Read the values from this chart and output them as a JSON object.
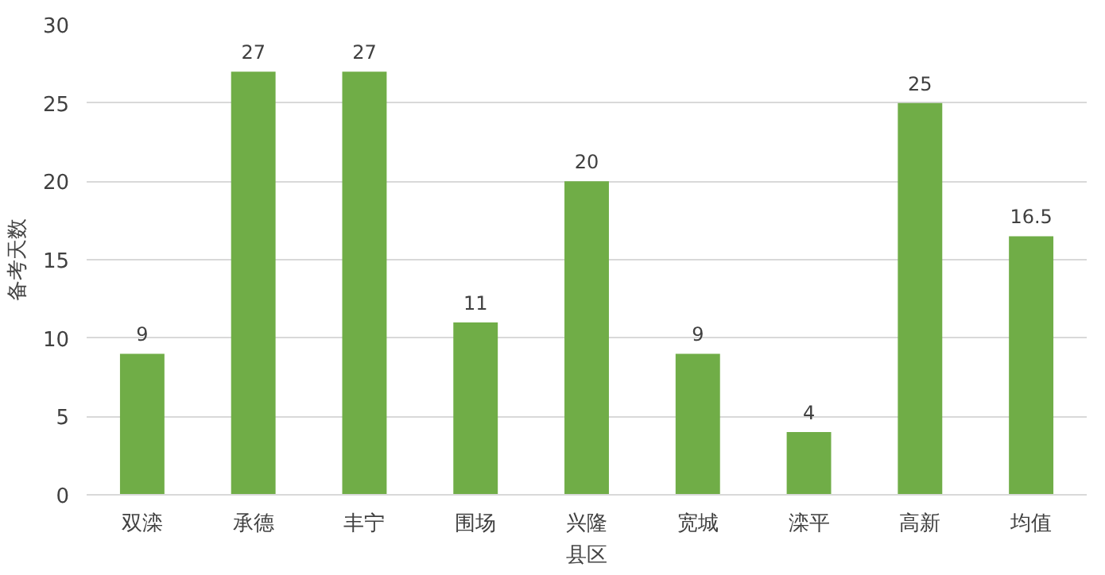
{
  "chart_data": {
    "type": "bar",
    "categories": [
      "双滦",
      "承德",
      "丰宁",
      "围场",
      "兴隆",
      "宽城",
      "滦平",
      "高新",
      "均值"
    ],
    "values": [
      9,
      27,
      27,
      11,
      20,
      9,
      4,
      25,
      16.5
    ],
    "color": "#70ad47",
    "xlabel": "县区",
    "ylabel": "备考天数",
    "ylim": [
      0,
      30
    ],
    "yticks": [
      0,
      5,
      10,
      15,
      20,
      25,
      30
    ],
    "grid": "y",
    "data_labels": true
  }
}
